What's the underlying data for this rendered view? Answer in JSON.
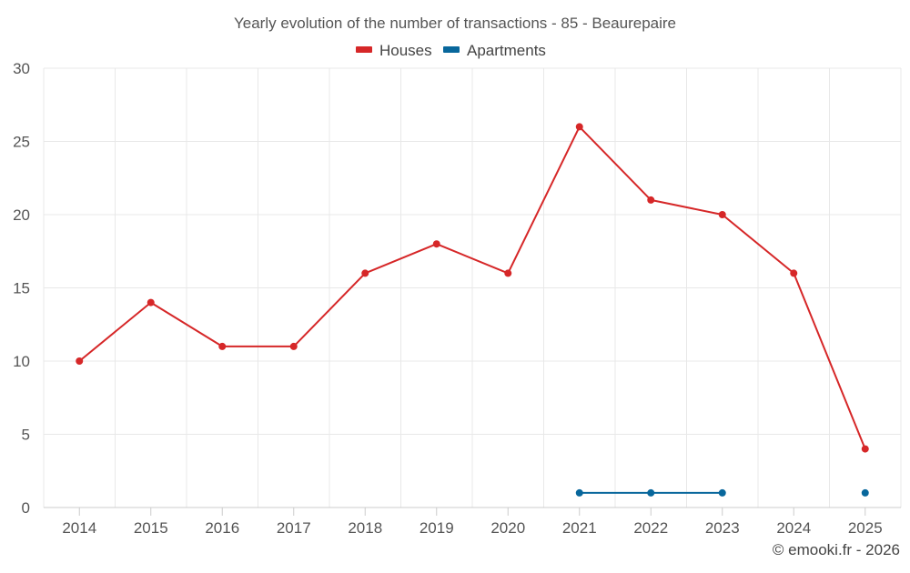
{
  "chart_data": {
    "type": "line",
    "title": "Yearly evolution of the number of transactions - 85 - Beaurepaire",
    "xlabel": "",
    "ylabel": "",
    "categories": [
      "2014",
      "2015",
      "2016",
      "2017",
      "2018",
      "2019",
      "2020",
      "2021",
      "2022",
      "2023",
      "2024",
      "2025"
    ],
    "y_ticks": [
      "0",
      "5",
      "10",
      "15",
      "20",
      "25",
      "30"
    ],
    "ylim": [
      0,
      30
    ],
    "grid": true,
    "legend_position": "top-center",
    "series": [
      {
        "name": "Houses",
        "color": "#d62728",
        "values": [
          10,
          14,
          11,
          11,
          16,
          18,
          16,
          26,
          21,
          20,
          16,
          4
        ]
      },
      {
        "name": "Apartments",
        "color": "#08679c",
        "values": [
          null,
          null,
          null,
          null,
          null,
          null,
          null,
          1,
          1,
          1,
          null,
          1
        ]
      }
    ],
    "credit": "© emooki.fr - 2026"
  }
}
